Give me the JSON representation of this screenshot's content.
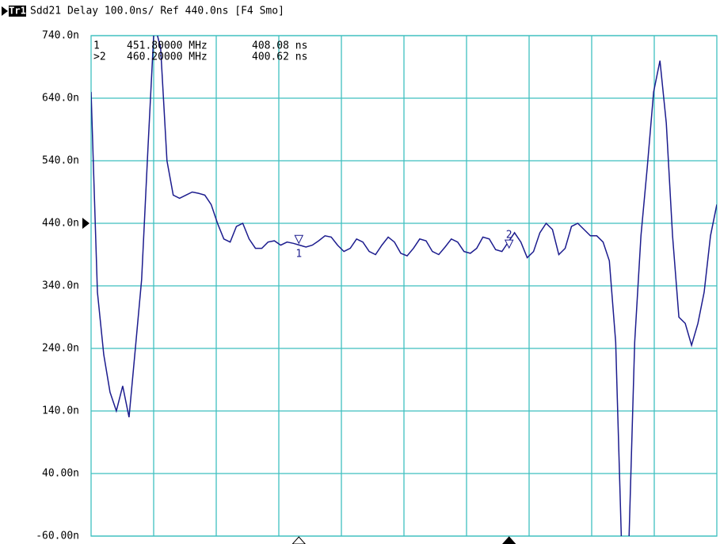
{
  "chart_data": {
    "type": "line",
    "channel": "Tr1",
    "title": "Sdd21 Delay 100.0ns/ Ref 440.0ns [F4 Smo]",
    "ylim": [
      -60,
      740
    ],
    "yticks": [
      {
        "value": -60,
        "label": "-60.00n"
      },
      {
        "value": 40,
        "label": "40.00n"
      },
      {
        "value": 140,
        "label": "140.0n"
      },
      {
        "value": 240,
        "label": "240.0n"
      },
      {
        "value": 340,
        "label": "340.0n"
      },
      {
        "value": 440,
        "label": "440.0n"
      },
      {
        "value": 540,
        "label": "540.0n"
      },
      {
        "value": 640,
        "label": "640.0n"
      },
      {
        "value": 740,
        "label": "740.0n"
      }
    ],
    "xlim": [
      443.5,
      468.5
    ],
    "xdivisions": 10,
    "grid": true,
    "reference": 440,
    "series": [
      {
        "color": "#1c1c8e",
        "values": [
          650,
          330,
          230,
          170,
          140,
          180,
          130,
          240,
          350,
          560,
          760,
          720,
          540,
          485,
          480,
          485,
          490,
          488,
          485,
          470,
          440,
          415,
          410,
          435,
          440,
          415,
          400,
          400,
          410,
          412,
          405,
          410,
          408,
          405,
          402,
          405,
          412,
          420,
          418,
          405,
          395,
          400,
          415,
          410,
          395,
          390,
          405,
          418,
          410,
          392,
          388,
          400,
          415,
          412,
          395,
          390,
          402,
          415,
          410,
          395,
          392,
          400,
          418,
          415,
          398,
          395,
          410,
          425,
          410,
          385,
          395,
          425,
          440,
          430,
          390,
          400,
          435,
          440,
          430,
          420,
          420,
          410,
          380,
          250,
          -100,
          -100,
          250,
          420,
          530,
          650,
          700,
          600,
          420,
          290,
          280,
          245,
          280,
          330,
          420,
          470
        ]
      }
    ],
    "markers": [
      {
        "name": "1",
        "readout": "1",
        "frequency": 451.8,
        "frequency_label": "451.80000 MHz",
        "value": 408.08,
        "value_label": "408.08 ns",
        "active": false
      },
      {
        "name": "2",
        "readout": ">2",
        "frequency": 460.2,
        "frequency_label": "460.20000 MHz",
        "value": 400.62,
        "value_label": "400.62 ns",
        "active": true
      }
    ]
  }
}
